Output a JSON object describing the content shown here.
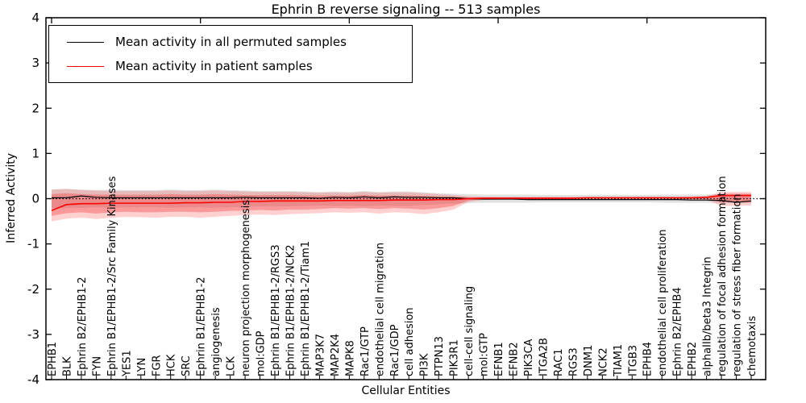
{
  "title": "Ephrin B reverse signaling -- 513 samples",
  "legend": {
    "items": [
      {
        "label": "Mean activity in all permuted samples",
        "color": "#000000"
      },
      {
        "label": "Mean activity in patient samples",
        "color": "#ff0000"
      }
    ]
  },
  "axes": {
    "ylabel": "Inferred Activity",
    "xlabel": "Cellular Entities",
    "yticks": [
      -4,
      -3,
      -2,
      -1,
      0,
      1,
      2,
      3,
      4
    ],
    "ylim": [
      -4,
      4
    ]
  },
  "colors": {
    "background": "#ffffff",
    "frame": "#000000",
    "permuted_line": "#000000",
    "patient_line": "#ff0000",
    "gray_band": "#aaaaaa",
    "red_band": "#ff3333"
  },
  "chart_data": {
    "type": "line",
    "title": "Ephrin B reverse signaling -- 513 samples",
    "xlabel": "Cellular Entities",
    "ylabel": "Inferred Activity",
    "ylim": [
      -4,
      4
    ],
    "grid": false,
    "legend_position": "upper left",
    "zero_reference_line": {
      "style": "dotted",
      "color": "#000000",
      "y": 0
    },
    "categories": [
      "EPHB1",
      "BLK",
      "Ephrin B2/EPHB1-2",
      "FYN",
      "Ephrin B1/EPHB1-2/Src Family Kinases",
      "YES1",
      "LYN",
      "FGR",
      "HCK",
      "SRC",
      "Ephrin B1/EPHB1-2",
      "angiogenesis",
      "LCK",
      "neuron projection morphogenesis",
      "mol:GDP",
      "Ephrin B1/EPHB1-2/RGS3",
      "Ephrin B1/EPHB1-2/NCK2",
      "Ephrin B1/EPHB1-2/Tiam1",
      "MAP3K7",
      "MAP2K4",
      "MAPK8",
      "Rac1/GTP",
      "endothelial cell migration",
      "Rac1/GDP",
      "cell adhesion",
      "PI3K",
      "PTPN13",
      "PIK3R1",
      "cell-cell signaling",
      "mol:GTP",
      "EFNB1",
      "EFNB2",
      "PIK3CA",
      "ITGA2B",
      "RAC1",
      "RGS3",
      "DNM1",
      "NCK2",
      "TIAM1",
      "ITGB3",
      "EPHB4",
      "endothelial cell proliferation",
      "Ephrin B2/EPHB4",
      "EPHB2",
      "alphaIIb/beta3 Integrin",
      "regulation of focal adhesion formation",
      "regulation of stress fiber formation",
      "chemotaxis"
    ],
    "series": [
      {
        "name": "Mean activity in all permuted samples",
        "color": "#000000",
        "values": [
          0.02,
          0.02,
          0.06,
          0.03,
          0.02,
          0.02,
          0.02,
          0.02,
          0.02,
          0.02,
          0.02,
          0.02,
          0.02,
          0.03,
          0.02,
          0.02,
          0.02,
          0.02,
          0.01,
          0.03,
          0.02,
          0.04,
          0.02,
          0.04,
          0.03,
          0.03,
          0.02,
          0.02,
          0.0,
          -0.01,
          -0.01,
          -0.01,
          -0.02,
          -0.02,
          -0.02,
          -0.02,
          -0.02,
          -0.02,
          -0.02,
          -0.02,
          -0.02,
          -0.02,
          -0.02,
          -0.03,
          -0.03,
          -0.04,
          -0.08,
          -0.05
        ]
      },
      {
        "name": "Mean activity in patient samples",
        "color": "#ff0000",
        "values": [
          -0.26,
          -0.13,
          -0.11,
          -0.11,
          -0.1,
          -0.1,
          -0.1,
          -0.1,
          -0.1,
          -0.09,
          -0.09,
          -0.08,
          -0.08,
          -0.06,
          -0.06,
          -0.05,
          -0.05,
          -0.05,
          -0.05,
          -0.04,
          -0.04,
          -0.04,
          -0.04,
          -0.03,
          -0.03,
          -0.03,
          -0.02,
          -0.02,
          0.0,
          0.01,
          0.01,
          0.01,
          0.01,
          0.01,
          0.01,
          0.01,
          0.02,
          0.02,
          0.02,
          0.02,
          0.02,
          0.02,
          0.02,
          0.02,
          0.03,
          0.07,
          0.07,
          0.07
        ]
      }
    ],
    "bands": [
      {
        "name": "permuted-spread-band",
        "color": "#aaaaaa",
        "opacity": 0.35,
        "upper": [
          0.2,
          0.21,
          0.2,
          0.19,
          0.2,
          0.19,
          0.19,
          0.19,
          0.2,
          0.19,
          0.19,
          0.2,
          0.19,
          0.18,
          0.17,
          0.17,
          0.17,
          0.16,
          0.15,
          0.16,
          0.15,
          0.17,
          0.15,
          0.16,
          0.16,
          0.14,
          0.12,
          0.11,
          0.1,
          0.09,
          0.09,
          0.09,
          0.09,
          0.08,
          0.08,
          0.08,
          0.08,
          0.08,
          0.08,
          0.08,
          0.08,
          0.09,
          0.09,
          0.09,
          0.09,
          0.1,
          0.1,
          0.1
        ],
        "lower": [
          -0.2,
          -0.21,
          -0.2,
          -0.19,
          -0.2,
          -0.19,
          -0.19,
          -0.19,
          -0.2,
          -0.19,
          -0.19,
          -0.2,
          -0.19,
          -0.18,
          -0.17,
          -0.17,
          -0.17,
          -0.16,
          -0.15,
          -0.16,
          -0.15,
          -0.17,
          -0.15,
          -0.16,
          -0.16,
          -0.14,
          -0.12,
          -0.11,
          -0.1,
          -0.09,
          -0.09,
          -0.09,
          -0.09,
          -0.08,
          -0.08,
          -0.08,
          -0.08,
          -0.08,
          -0.08,
          -0.08,
          -0.08,
          -0.09,
          -0.09,
          -0.09,
          -0.09,
          -0.1,
          -0.1,
          -0.1
        ]
      },
      {
        "name": "patient-outer-band",
        "color": "#ff4444",
        "opacity": 0.25,
        "upper": [
          0.2,
          0.22,
          0.19,
          0.18,
          0.17,
          0.17,
          0.17,
          0.17,
          0.18,
          0.17,
          0.17,
          0.18,
          0.17,
          0.16,
          0.15,
          0.15,
          0.15,
          0.14,
          0.13,
          0.14,
          0.13,
          0.15,
          0.13,
          0.14,
          0.14,
          0.12,
          0.1,
          0.08,
          0.05,
          0.04,
          0.04,
          0.04,
          0.04,
          0.04,
          0.04,
          0.04,
          0.04,
          0.04,
          0.04,
          0.04,
          0.04,
          0.04,
          0.04,
          0.05,
          0.06,
          0.15,
          0.15,
          0.15
        ],
        "lower": [
          -0.5,
          -0.44,
          -0.42,
          -0.45,
          -0.42,
          -0.4,
          -0.41,
          -0.42,
          -0.4,
          -0.4,
          -0.42,
          -0.4,
          -0.38,
          -0.36,
          -0.35,
          -0.36,
          -0.34,
          -0.33,
          -0.32,
          -0.3,
          -0.31,
          -0.3,
          -0.33,
          -0.3,
          -0.31,
          -0.34,
          -0.3,
          -0.24,
          -0.07,
          -0.03,
          -0.02,
          -0.02,
          -0.02,
          -0.02,
          -0.02,
          -0.02,
          -0.01,
          -0.01,
          -0.01,
          -0.01,
          -0.01,
          -0.01,
          -0.02,
          -0.02,
          -0.03,
          -0.16,
          -0.16,
          -0.15
        ]
      },
      {
        "name": "patient-inner-band",
        "color": "#ee3333",
        "opacity": 0.35,
        "upper": [
          0.1,
          0.12,
          0.1,
          0.09,
          0.09,
          0.09,
          0.09,
          0.09,
          0.1,
          0.09,
          0.09,
          0.1,
          0.09,
          0.08,
          0.08,
          0.08,
          0.08,
          0.07,
          0.07,
          0.07,
          0.07,
          0.08,
          0.07,
          0.07,
          0.07,
          0.06,
          0.05,
          0.04,
          0.03,
          0.03,
          0.03,
          0.03,
          0.03,
          0.03,
          0.03,
          0.03,
          0.03,
          0.03,
          0.03,
          0.03,
          0.03,
          0.03,
          0.03,
          0.03,
          0.04,
          0.11,
          0.11,
          0.11
        ],
        "lower": [
          -0.38,
          -0.32,
          -0.3,
          -0.33,
          -0.3,
          -0.29,
          -0.3,
          -0.3,
          -0.29,
          -0.29,
          -0.3,
          -0.29,
          -0.27,
          -0.26,
          -0.25,
          -0.26,
          -0.24,
          -0.24,
          -0.23,
          -0.21,
          -0.22,
          -0.21,
          -0.23,
          -0.21,
          -0.22,
          -0.24,
          -0.21,
          -0.16,
          -0.04,
          -0.01,
          0.0,
          0.0,
          0.0,
          0.0,
          0.0,
          0.0,
          0.0,
          0.0,
          0.0,
          0.0,
          0.0,
          0.0,
          -0.01,
          -0.01,
          -0.01,
          -0.08,
          -0.08,
          -0.08
        ]
      }
    ]
  }
}
